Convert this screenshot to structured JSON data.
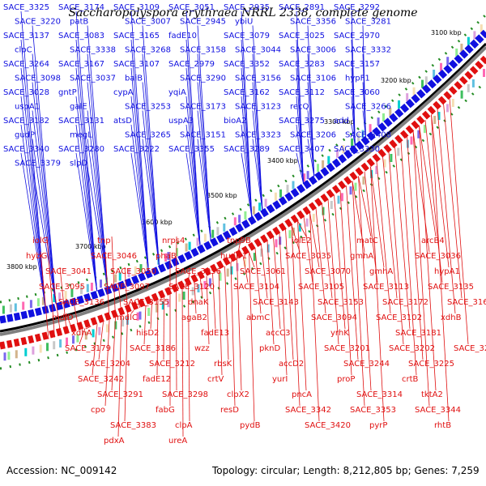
{
  "title": "Saccharopolyspora erythraea NRRL 2338, complete genome",
  "footer": {
    "accession": "Accession: NC_009142",
    "summary": "Topology: circular; Length: 8,212,805 bp; Genes: 7,259"
  },
  "colors": {
    "forward": "#1010e0",
    "reverse": "#e01010",
    "backbone": "#808080",
    "ticks": "#228b22"
  },
  "kbp_labels": [
    "3100 kbp",
    "3200 kbp",
    "3300 kbp",
    "3400 kbp",
    "3500 kbp",
    "3600 kbp",
    "3700 kbp",
    "3800 kbp"
  ],
  "blue_genes": [
    "SACE_3325",
    "SACE_3174",
    "SACE_3109",
    "SACE_3051",
    "SACE_2935",
    "SACE_2891",
    "SACE_3292",
    "SACE_3220",
    "patB",
    "SACE_3007",
    "SACE_2945",
    "ybiU",
    "SACE_3356",
    "SACE_3281",
    "SACE_3137",
    "SACE_3083",
    "SACE_3165",
    "fadE10",
    "SACE_3079",
    "SACE_3025",
    "SACE_2970",
    "clpC",
    "SACE_3338",
    "SACE_3268",
    "SACE_3158",
    "SACE_3044",
    "SACE_3006",
    "SACE_3332",
    "SACE_3264",
    "SACE_3167",
    "SACE_3107",
    "SACE_2979",
    "SACE_3352",
    "SACE_3283",
    "SACE_3157",
    "SACE_3098",
    "SACE_3037",
    "baiB",
    "SACE_3290",
    "SACE_3156",
    "SACE_3106",
    "hypF1",
    "SACE_3028",
    "gntP",
    "cypA",
    "yqiA",
    "SACE_3162",
    "SACE_3112",
    "SACE_3060",
    "uspA1",
    "galE",
    "SACE_3253",
    "SACE_3173",
    "SACE_3123",
    "recQ",
    "SACE_3266",
    "SACE_3182",
    "SACE_3131",
    "atsD",
    "uspA3",
    "bioA2",
    "SACE_3275",
    "add",
    "gudP",
    "megL",
    "SACE_3265",
    "SACE_3151",
    "SACE_3323",
    "SACE_3206",
    "SACE_3408",
    "SACE_3340",
    "SACE_3280",
    "SACE_3222",
    "SACE_3355",
    "SACE_3289",
    "SACE_3407",
    "SACE_3330",
    "SACE_3379",
    "slpD"
  ],
  "red_genes": [
    "iolG",
    "tnp",
    "nrps4",
    "tnp9B",
    "iolE2",
    "matC",
    "arcB4",
    "hybG",
    "SACE_3046",
    "phaB",
    "hupD1",
    "SACE_3035",
    "gmhA",
    "SACE_3036",
    "SACE_3041",
    "SACE_3050",
    "SACE_3056",
    "SACE_3061",
    "SACE_3070",
    "gmhA",
    "hypA1",
    "SACE_3095",
    "SACE_3097",
    "SACE_3120",
    "SACE_3104",
    "SACE_3105",
    "SACE_3113",
    "SACE_3135",
    "SACE_3136",
    "SACE_3155",
    "dnaK",
    "SACE_3143",
    "SACE_3153",
    "SACE_3172",
    "SACE_3169",
    "mdlD",
    "mdlC",
    "agaB2",
    "abmC",
    "SACE_3094",
    "SACE_3102",
    "xdhB",
    "xdhA",
    "hisD2",
    "fadE13",
    "accC3",
    "yrhK",
    "SACE_3181",
    "SACE_3180",
    "SACE_3179",
    "SACE_3186",
    "wzz",
    "pknD",
    "SACE_3201",
    "SACE_3202",
    "SACE_3203",
    "SACE_3204",
    "SACE_3212",
    "rbsK",
    "accD2",
    "SACE_3244",
    "SACE_3225",
    "SACE_3240",
    "SACE_3242",
    "fadE12",
    "crtV",
    "yurI",
    "proP",
    "crtB",
    "aglA",
    "SACE_3291",
    "SACE_3298",
    "clpX2",
    "pncA",
    "SACE_3314",
    "tktA2",
    "cpoF",
    "cpo",
    "fabG",
    "resD",
    "SACE_3342",
    "SACE_3353",
    "SACE_3344",
    "pccB",
    "SACE_3383",
    "clpA",
    "pydB",
    "SACE_3420",
    "pyrP",
    "rhtB",
    "ygbK",
    "pdxA",
    "ureA"
  ]
}
